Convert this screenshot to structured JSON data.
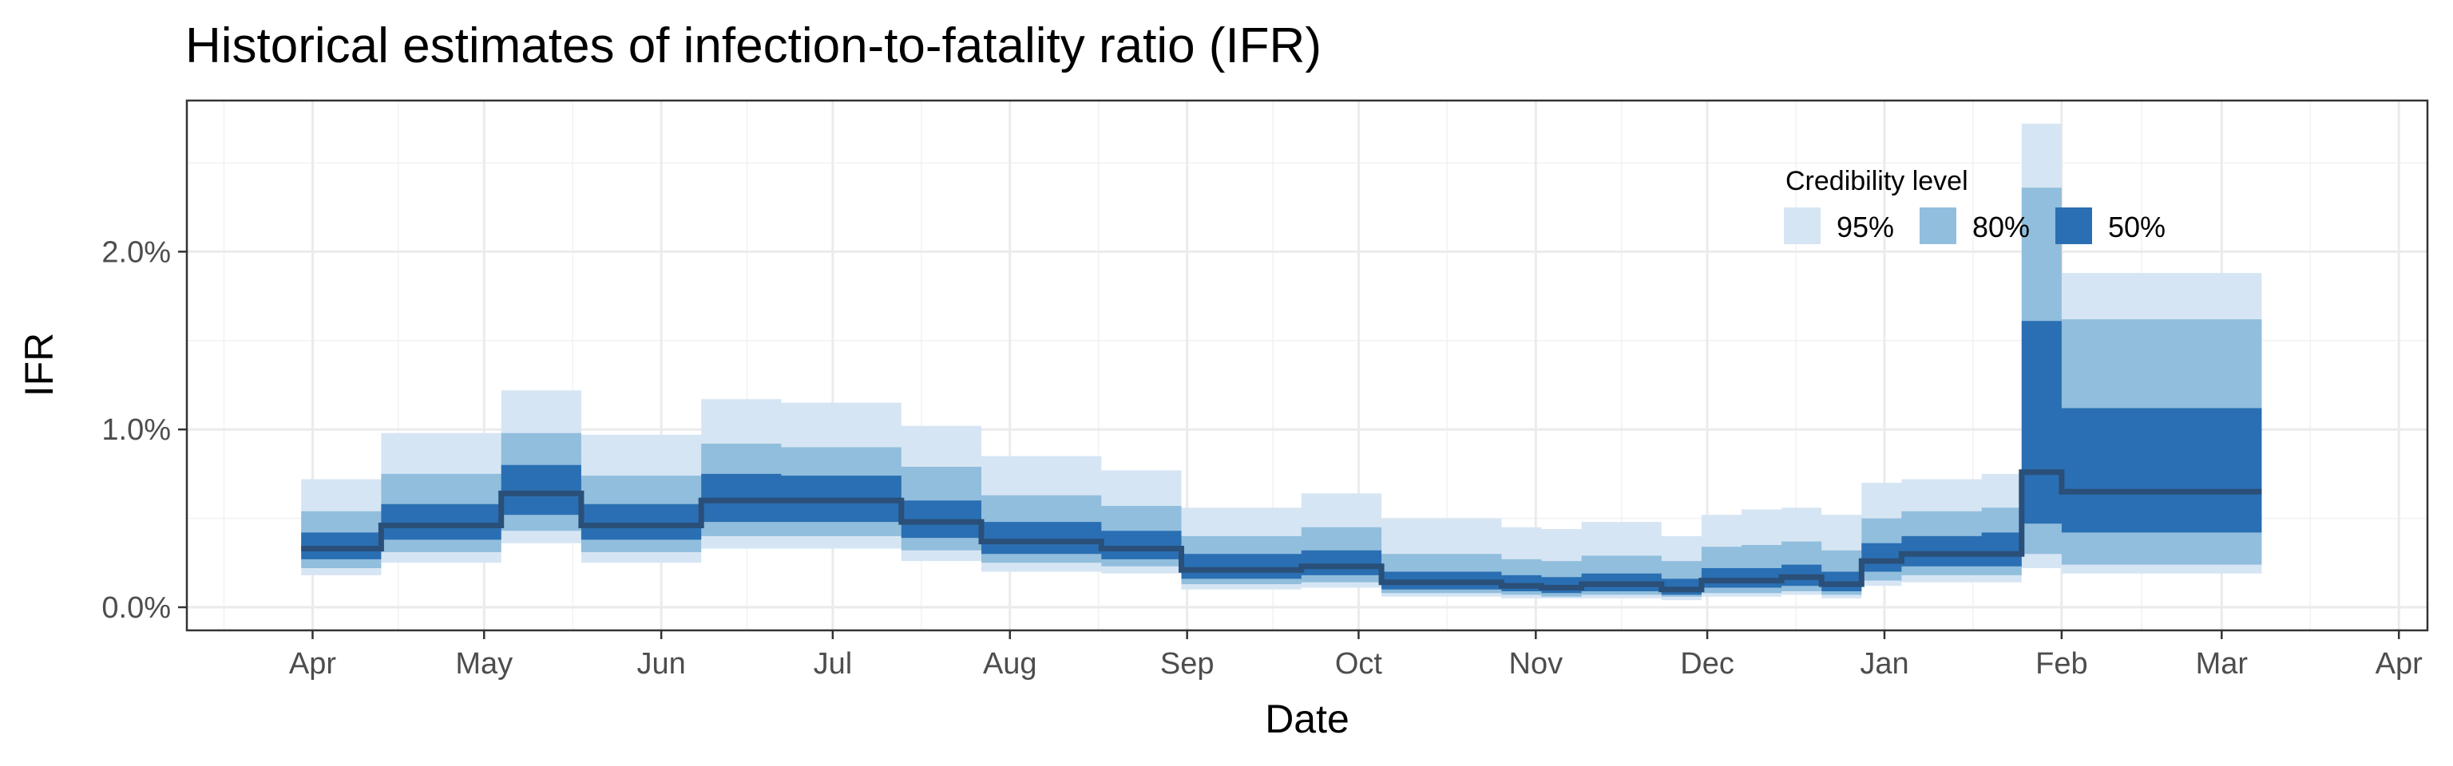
{
  "chart_data": {
    "type": "area",
    "title": "Historical estimates of infection-to-fatality ratio (IFR)",
    "xlabel": "Date",
    "ylabel": "IFR",
    "x_ticks": [
      "Apr",
      "May",
      "Jun",
      "Jul",
      "Aug",
      "Sep",
      "Oct",
      "Nov",
      "Dec",
      "Jan",
      "Feb",
      "Mar",
      "Apr"
    ],
    "x_tick_dates": [
      "2020-04-01",
      "2020-05-01",
      "2020-06-01",
      "2020-07-01",
      "2020-08-01",
      "2020-09-01",
      "2020-10-01",
      "2020-11-01",
      "2020-12-01",
      "2021-01-01",
      "2021-02-01",
      "2021-03-01",
      "2021-04-01"
    ],
    "xlim": [
      "2020-03-10",
      "2021-04-06"
    ],
    "y_ticks": [
      0,
      1,
      2
    ],
    "y_tick_labels": [
      "0.0%",
      "1.0%",
      "2.0%"
    ],
    "ylim": [
      -0.13,
      2.85
    ],
    "grid": true,
    "legend": {
      "title": "Credibility level",
      "position": "top-right",
      "entries": [
        {
          "label": "95%",
          "color": "#d6e5f4"
        },
        {
          "label": "80%",
          "color": "#91bedc"
        },
        {
          "label": "50%",
          "color": "#2a6fb3"
        }
      ]
    },
    "median_color": "#2a4f78",
    "series": [
      {
        "date": "2020-03-30",
        "median": 0.33,
        "lo50": 0.27,
        "hi50": 0.42,
        "lo80": 0.22,
        "hi80": 0.54,
        "lo95": 0.18,
        "hi95": 0.72
      },
      {
        "date": "2020-04-13",
        "median": 0.46,
        "lo50": 0.38,
        "hi50": 0.58,
        "lo80": 0.31,
        "hi80": 0.75,
        "lo95": 0.25,
        "hi95": 0.98
      },
      {
        "date": "2020-05-04",
        "median": 0.64,
        "lo50": 0.52,
        "hi50": 0.8,
        "lo80": 0.43,
        "hi80": 0.98,
        "lo95": 0.36,
        "hi95": 1.22
      },
      {
        "date": "2020-05-18",
        "median": 0.46,
        "lo50": 0.38,
        "hi50": 0.58,
        "lo80": 0.31,
        "hi80": 0.74,
        "lo95": 0.25,
        "hi95": 0.97
      },
      {
        "date": "2020-06-08",
        "median": 0.6,
        "lo50": 0.48,
        "hi50": 0.75,
        "lo80": 0.4,
        "hi80": 0.92,
        "lo95": 0.33,
        "hi95": 1.17
      },
      {
        "date": "2020-06-22",
        "median": 0.6,
        "lo50": 0.48,
        "hi50": 0.74,
        "lo80": 0.4,
        "hi80": 0.9,
        "lo95": 0.33,
        "hi95": 1.15
      },
      {
        "date": "2020-07-13",
        "median": 0.48,
        "lo50": 0.39,
        "hi50": 0.6,
        "lo80": 0.32,
        "hi80": 0.79,
        "lo95": 0.26,
        "hi95": 1.02
      },
      {
        "date": "2020-07-27",
        "median": 0.37,
        "lo50": 0.3,
        "hi50": 0.48,
        "lo80": 0.25,
        "hi80": 0.63,
        "lo95": 0.2,
        "hi95": 0.85
      },
      {
        "date": "2020-08-17",
        "median": 0.33,
        "lo50": 0.27,
        "hi50": 0.43,
        "lo80": 0.23,
        "hi80": 0.57,
        "lo95": 0.19,
        "hi95": 0.77
      },
      {
        "date": "2020-08-31",
        "median": 0.21,
        "lo50": 0.16,
        "hi50": 0.3,
        "lo80": 0.13,
        "hi80": 0.4,
        "lo95": 0.1,
        "hi95": 0.56
      },
      {
        "date": "2020-09-21",
        "median": 0.23,
        "lo50": 0.18,
        "hi50": 0.32,
        "lo80": 0.14,
        "hi80": 0.45,
        "lo95": 0.11,
        "hi95": 0.64
      },
      {
        "date": "2020-10-05",
        "median": 0.14,
        "lo50": 0.1,
        "hi50": 0.2,
        "lo80": 0.08,
        "hi80": 0.3,
        "lo95": 0.06,
        "hi95": 0.5
      },
      {
        "date": "2020-10-26",
        "median": 0.12,
        "lo50": 0.09,
        "hi50": 0.18,
        "lo80": 0.07,
        "hi80": 0.27,
        "lo95": 0.05,
        "hi95": 0.45
      },
      {
        "date": "2020-11-02",
        "median": 0.11,
        "lo50": 0.08,
        "hi50": 0.17,
        "lo80": 0.06,
        "hi80": 0.26,
        "lo95": 0.05,
        "hi95": 0.44
      },
      {
        "date": "2020-11-09",
        "median": 0.13,
        "lo50": 0.09,
        "hi50": 0.19,
        "lo80": 0.07,
        "hi80": 0.29,
        "lo95": 0.05,
        "hi95": 0.48
      },
      {
        "date": "2020-11-16",
        "median": 0.13,
        "lo50": 0.09,
        "hi50": 0.19,
        "lo80": 0.07,
        "hi80": 0.29,
        "lo95": 0.05,
        "hi95": 0.48
      },
      {
        "date": "2020-11-23",
        "median": 0.1,
        "lo50": 0.07,
        "hi50": 0.16,
        "lo80": 0.06,
        "hi80": 0.26,
        "lo95": 0.04,
        "hi95": 0.4
      },
      {
        "date": "2020-11-30",
        "median": 0.15,
        "lo50": 0.11,
        "hi50": 0.22,
        "lo80": 0.08,
        "hi80": 0.34,
        "lo95": 0.06,
        "hi95": 0.52
      },
      {
        "date": "2020-12-07",
        "median": 0.15,
        "lo50": 0.11,
        "hi50": 0.22,
        "lo80": 0.08,
        "hi80": 0.35,
        "lo95": 0.06,
        "hi95": 0.55
      },
      {
        "date": "2020-12-14",
        "median": 0.17,
        "lo50": 0.12,
        "hi50": 0.24,
        "lo80": 0.09,
        "hi80": 0.37,
        "lo95": 0.07,
        "hi95": 0.56
      },
      {
        "date": "2020-12-21",
        "median": 0.13,
        "lo50": 0.09,
        "hi50": 0.2,
        "lo80": 0.07,
        "hi80": 0.32,
        "lo95": 0.05,
        "hi95": 0.52
      },
      {
        "date": "2020-12-28",
        "median": 0.26,
        "lo50": 0.2,
        "hi50": 0.36,
        "lo80": 0.15,
        "hi80": 0.5,
        "lo95": 0.12,
        "hi95": 0.7
      },
      {
        "date": "2021-01-04",
        "median": 0.3,
        "lo50": 0.23,
        "hi50": 0.4,
        "lo80": 0.18,
        "hi80": 0.54,
        "lo95": 0.14,
        "hi95": 0.72
      },
      {
        "date": "2021-01-18",
        "median": 0.3,
        "lo50": 0.23,
        "hi50": 0.42,
        "lo80": 0.18,
        "hi80": 0.56,
        "lo95": 0.14,
        "hi95": 0.75
      },
      {
        "date": "2021-01-25",
        "median": 0.76,
        "lo50": 0.47,
        "hi50": 1.61,
        "lo80": 0.3,
        "hi80": 2.36,
        "lo95": 0.22,
        "hi95": 2.72
      },
      {
        "date": "2021-02-01",
        "median": 0.65,
        "lo50": 0.42,
        "hi50": 1.12,
        "lo80": 0.24,
        "hi80": 1.62,
        "lo95": 0.19,
        "hi95": 1.88
      },
      {
        "date": "2021-03-08",
        "median": 0.65,
        "lo50": 0.42,
        "hi50": 1.12,
        "lo80": 0.24,
        "hi80": 1.62,
        "lo95": 0.19,
        "hi95": 1.88
      }
    ]
  }
}
